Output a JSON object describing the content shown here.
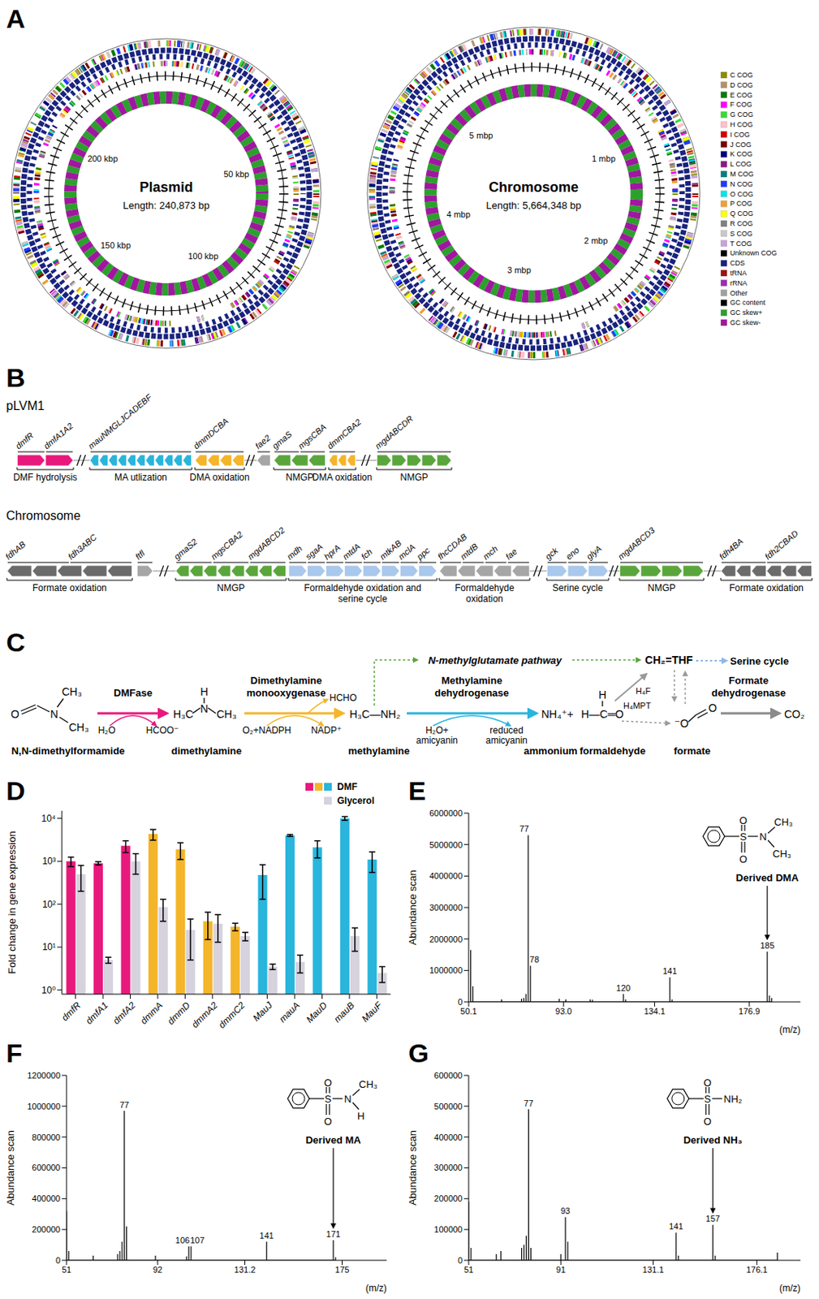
{
  "figure": {
    "A": {
      "letter": "A",
      "maps": [
        {
          "title": "Plasmid",
          "length_bp": 240873,
          "length_label": "Length: 240,873 bp",
          "ticks": [
            {
              "value": 50000,
              "label": "50 kbp"
            },
            {
              "value": 100000,
              "label": "100 kbp"
            },
            {
              "value": 150000,
              "label": "150 kbp"
            },
            {
              "value": 200000,
              "label": "200 kbp"
            }
          ]
        },
        {
          "title": "Chromosome",
          "length_bp": 5664348,
          "length_label": "Length: 5,664,348 bp",
          "ticks": [
            {
              "value": 1000000,
              "label": "1 mbp"
            },
            {
              "value": 2000000,
              "label": "2 mbp"
            },
            {
              "value": 3000000,
              "label": "3 mbp"
            },
            {
              "value": 4000000,
              "label": "4 mbp"
            },
            {
              "value": 5000000,
              "label": "5 mbp"
            }
          ]
        }
      ],
      "legend": [
        {
          "label": "C COG",
          "color": "#8b8b00"
        },
        {
          "label": "D COG",
          "color": "#b5916a"
        },
        {
          "label": "E COG",
          "color": "#0b7a0b"
        },
        {
          "label": "F COG",
          "color": "#ff00ff"
        },
        {
          "label": "G COG",
          "color": "#33dd33"
        },
        {
          "label": "H COG",
          "color": "#ffc0cb"
        },
        {
          "label": "I COG",
          "color": "#d40000"
        },
        {
          "label": "J COG",
          "color": "#7a0000"
        },
        {
          "label": "K COG",
          "color": "#000080"
        },
        {
          "label": "L COG",
          "color": "#8b1a8b"
        },
        {
          "label": "M COG",
          "color": "#008080"
        },
        {
          "label": "N COG",
          "color": "#1e3cff"
        },
        {
          "label": "O COG",
          "color": "#00e5ee"
        },
        {
          "label": "P COG",
          "color": "#f0a030"
        },
        {
          "label": "Q COG",
          "color": "#ffff00"
        },
        {
          "label": "R COG",
          "color": "#808080"
        },
        {
          "label": "S COG",
          "color": "#c8c8c8"
        },
        {
          "label": "T COG",
          "color": "#c9a0dc"
        },
        {
          "label": "Unknown COG",
          "color": "#000000"
        },
        {
          "label": "CDS",
          "color": "#1a237e"
        },
        {
          "label": "tRNA",
          "color": "#a01010"
        },
        {
          "label": "rRNA",
          "color": "#9b30b0"
        },
        {
          "label": "Other",
          "color": "#a0a0a0"
        },
        {
          "label": "GC content",
          "color": "#000000"
        },
        {
          "label": "GC skew+",
          "color": "#2ca02c"
        },
        {
          "label": "GC skew-",
          "color": "#a0179f"
        }
      ]
    },
    "B": {
      "letter": "B",
      "rows": [
        {
          "name": "pLVM1",
          "segments": [
            {
              "genes": [
                "dmfR",
                "dmfA1A2"
              ],
              "function": "DMF hydrolysis",
              "color": "#e8197d"
            },
            {
              "genes": [
                "mauNMGLJCADEBF"
              ],
              "function": "MA utlization",
              "color": "#29b5dc"
            },
            {
              "genes": [
                "dmmDCBA"
              ],
              "function": "DMA oxidation",
              "color": "#f5b52a"
            },
            {
              "genes": [
                "fae2"
              ],
              "color": "#a6a6a6"
            },
            {
              "genes": [
                "gmaS",
                "mgsCBA"
              ],
              "function": "NMGP",
              "color": "#5aa63c"
            },
            {
              "genes": [
                "dmmCBA2"
              ],
              "function": "DMA oxidation",
              "color": "#f5b52a"
            },
            {
              "genes": [
                "mgdABCDR"
              ],
              "function": "NMGP",
              "color": "#5aa63c"
            }
          ]
        },
        {
          "name": "Chromosome",
          "segments": [
            {
              "genes": [
                "fdhAB",
                "fdh3ABC"
              ],
              "function": "Formate oxidation",
              "color": "#6b6b6b"
            },
            {
              "genes": [
                "ftfl"
              ],
              "color": "#a6a6a6"
            },
            {
              "genes": [
                "gmaS2",
                "mgsCBA2",
                "mgdABCD2"
              ],
              "function": "NMGP",
              "color": "#5aa63c"
            },
            {
              "genes": [
                "mdh",
                "sgaA",
                "hprA",
                "mtdA",
                "fch",
                "mtkAB",
                "mclA",
                "ppc"
              ],
              "function": "Formaldehyde oxidation and serine cycle",
              "color": "#a9c8ec"
            },
            {
              "genes": [
                "fhcCDAB",
                "mtdB",
                "mch",
                "fae"
              ],
              "function": "Formaldehyde oxidation",
              "color": "#a6a6a6"
            },
            {
              "genes": [
                "gck",
                "eno",
                "glyA"
              ],
              "function": "Serine cycle",
              "color": "#a9c8ec"
            },
            {
              "genes": [
                "mgdABCD3"
              ],
              "function": "NMGP",
              "color": "#5aa63c"
            },
            {
              "genes": [
                "fdh4BA",
                "fdh2CBAD"
              ],
              "function": "Formate oxidation",
              "color": "#6b6b6b"
            }
          ]
        }
      ]
    },
    "C": {
      "letter": "C",
      "compounds": [
        {
          "name": "N,N-dimethylformamide",
          "atoms": [
            "O",
            "N",
            "CH₃",
            "CH₃"
          ]
        },
        {
          "name": "dimethylamine",
          "atoms": [
            "H₃C",
            "N",
            "H",
            "CH₃"
          ]
        },
        {
          "name": "methylamine",
          "atoms": [
            "H₃C—NH₂"
          ]
        },
        {
          "name": "ammonium",
          "atoms": [
            "NH₄⁺+"
          ]
        },
        {
          "name": "formaldehyde",
          "atoms": [
            "H",
            "H—C═O"
          ]
        },
        {
          "name": "formate",
          "atoms": [
            "⁻O",
            "O"
          ]
        }
      ],
      "enzymes": [
        {
          "name": "DMFase",
          "color": "#e8197d",
          "cofactors": [
            "H₂O",
            "HCOO⁻"
          ]
        },
        {
          "name": "Dimethylamine monooxygenase",
          "color": "#f5b52a",
          "cofactors": [
            "O₂+NADPH",
            "NADP⁺"
          ],
          "byproduct": "HCHO"
        },
        {
          "name": "Methylamine dehydrogenase",
          "color": "#29b5dc",
          "cofactors": [
            "H₂O+ amicyanin",
            "reduced amicyanin"
          ]
        },
        {
          "name": "Formate dehydrogenase",
          "color": "#8a8a8a"
        }
      ],
      "branches": {
        "pathway": "N-methylglutamate pathway",
        "intermediate": "CH₂=THF",
        "cycle": "Serine cycle",
        "carriers": [
          "H₄F",
          "H₄MPT"
        ]
      },
      "product": "CO₂"
    }
  },
  "chart_data": [
    {
      "panel": "D",
      "type": "bar",
      "categories": [
        "dmfR",
        "dmfA1",
        "dmfA2",
        "dmmA",
        "dmmD",
        "dmmA2",
        "dmmC2",
        "MauJ",
        "mauA",
        "MauD",
        "mauB",
        "MauF"
      ],
      "series": [
        {
          "name": "DMF",
          "colors": [
            "#e8197d",
            "#e8197d",
            "#e8197d",
            "#f5b52a",
            "#f5b52a",
            "#f5b52a",
            "#f5b52a",
            "#29b5dc",
            "#29b5dc",
            "#29b5dc",
            "#29b5dc",
            "#29b5dc"
          ],
          "values": [
            1000,
            900,
            2300,
            4300,
            1900,
            40,
            30,
            480,
            4000,
            2100,
            10000,
            1100
          ],
          "errors": [
            250,
            80,
            700,
            1200,
            800,
            25,
            6,
            350,
            200,
            900,
            1000,
            550
          ]
        },
        {
          "name": "Glycerol",
          "color": "#d6d2de",
          "values": [
            500,
            5,
            1000,
            85,
            25,
            35,
            18,
            3.5,
            4.5,
            null,
            18,
            2.5
          ],
          "errors": [
            300,
            0.8,
            500,
            45,
            20,
            22,
            4,
            0.5,
            2,
            null,
            10,
            1
          ]
        }
      ],
      "y_label": "Fold change in gene expression",
      "log": "y",
      "ylim": [
        0.8,
        15000
      ],
      "yticks": [
        {
          "value": 1,
          "label": "10⁰"
        },
        {
          "value": 10,
          "label": "10¹"
        },
        {
          "value": 100,
          "label": "10²"
        },
        {
          "value": 1000,
          "label": "10³"
        },
        {
          "value": 10000,
          "label": "10⁴"
        }
      ],
      "legend": "upper right"
    },
    {
      "panel": "E",
      "type": "bar",
      "x": [
        51,
        52,
        65,
        74,
        75,
        76,
        77,
        78,
        91,
        94,
        105,
        106,
        120,
        121,
        141,
        142,
        185,
        186,
        187
      ],
      "values": [
        1650000,
        500000,
        80000,
        100000,
        120000,
        250000,
        5300000,
        1150000,
        100000,
        80000,
        80000,
        70000,
        250000,
        80000,
        780000,
        80000,
        1600000,
        200000,
        120000
      ],
      "color": "#000000",
      "peak_labels": [
        77,
        78,
        120,
        141,
        185
      ],
      "annotation": {
        "text": "Derived DMA",
        "x": 185
      },
      "structure": [
        "O",
        "S",
        "O",
        "N",
        "CH₃",
        "CH₃"
      ],
      "x_label": "(m/z)",
      "y_label": "Abundance scan",
      "xlim": [
        50.1,
        200
      ],
      "xticks": [
        50.1,
        {
          "value": 93,
          "label": "93.0"
        },
        134.1,
        176.9
      ],
      "ylim": [
        0,
        6000000
      ],
      "yticks": [
        0,
        1000000,
        2000000,
        3000000,
        4000000,
        5000000,
        6000000
      ]
    },
    {
      "panel": "F",
      "type": "bar",
      "x": [
        51,
        52,
        63,
        74,
        75,
        76,
        77,
        78,
        91,
        105,
        106,
        107,
        141,
        171,
        172
      ],
      "values": [
        320000,
        60000,
        30000,
        40000,
        60000,
        120000,
        970000,
        220000,
        30000,
        25000,
        90000,
        90000,
        120000,
        130000,
        20000
      ],
      "color": "#000000",
      "peak_labels": [
        77,
        106,
        107,
        141,
        171
      ],
      "annotation": {
        "text": "Derived MA",
        "x": 171
      },
      "structure": [
        "O",
        "S",
        "O",
        "N",
        "CH₃",
        "H"
      ],
      "x_label": "(m/z)",
      "y_label": "Abundance scan",
      "xlim": [
        51,
        195
      ],
      "xticks": [
        51,
        92,
        131.2,
        175
      ],
      "ylim": [
        0,
        1200000
      ],
      "yticks": [
        0,
        200000,
        400000,
        600000,
        800000,
        1000000,
        1200000
      ]
    },
    {
      "panel": "G",
      "type": "bar",
      "x": [
        51,
        52,
        63,
        65,
        74,
        75,
        76,
        77,
        78,
        91,
        93,
        94,
        141,
        142,
        157,
        158,
        185
      ],
      "values": [
        190000,
        40000,
        20000,
        30000,
        40000,
        50000,
        80000,
        490000,
        40000,
        20000,
        140000,
        60000,
        90000,
        15000,
        115000,
        15000,
        25000
      ],
      "color": "#000000",
      "peak_labels": [
        77,
        93,
        141,
        157
      ],
      "annotation": {
        "text": "Derived NH₃",
        "x": 157
      },
      "structure": [
        "O",
        "S",
        "O",
        "NH₂"
      ],
      "x_label": "(m/z)",
      "y_label": "Abundance scan",
      "xlim": [
        51,
        195
      ],
      "xticks": [
        51,
        91,
        131.1,
        176.1
      ],
      "ylim": [
        0,
        600000
      ],
      "yticks": [
        0,
        100000,
        200000,
        300000,
        400000,
        500000,
        600000
      ]
    }
  ]
}
